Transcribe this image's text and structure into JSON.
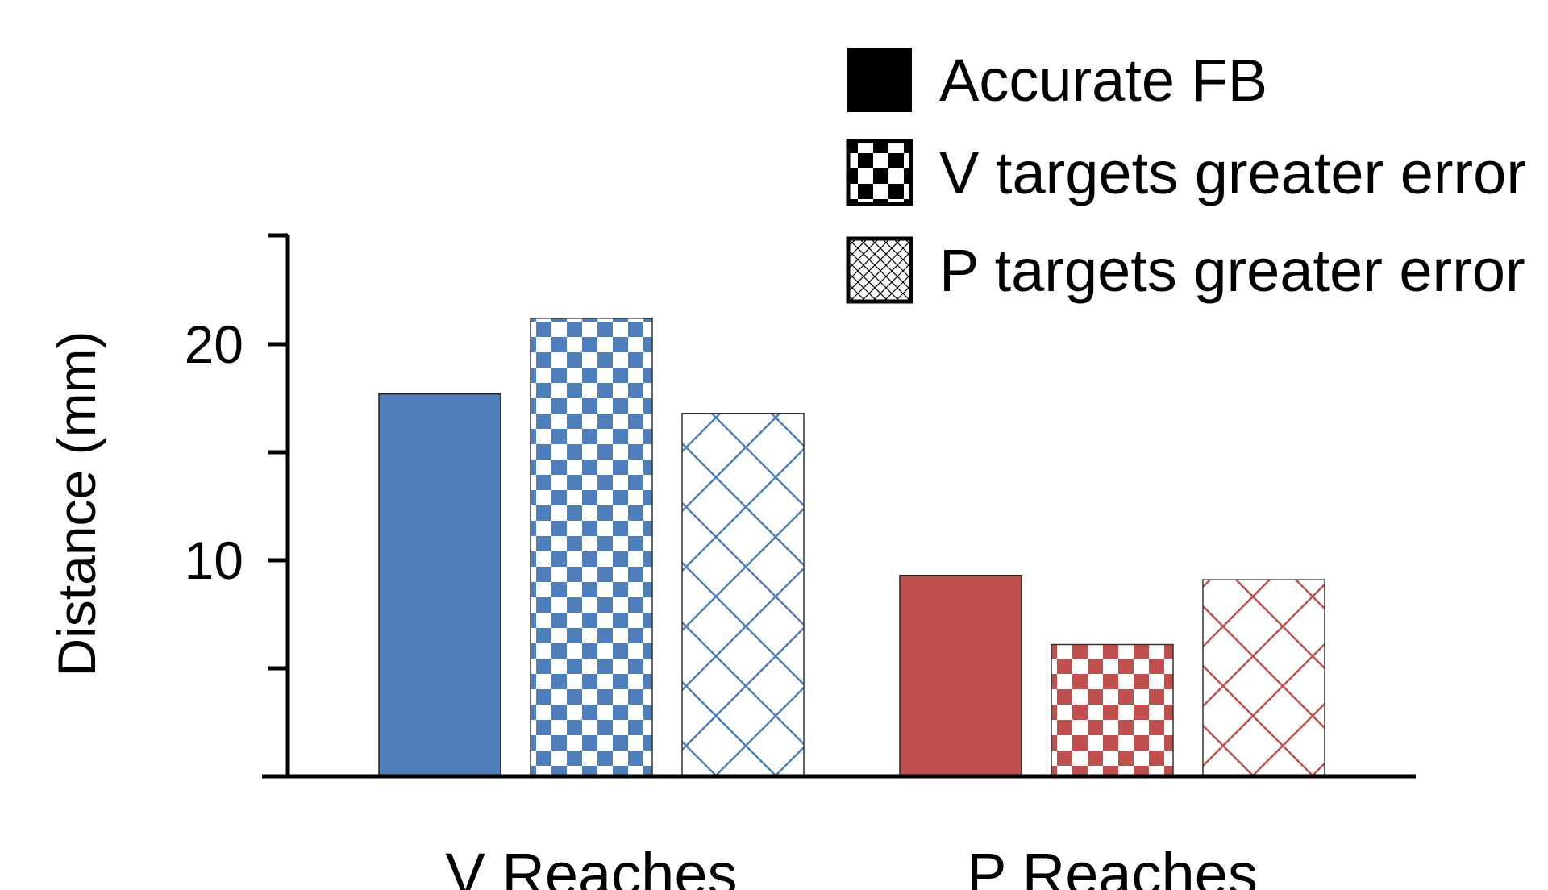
{
  "chart_data": {
    "type": "bar",
    "title": "",
    "xlabel": "",
    "ylabel": "Distance (mm)",
    "ylim": [
      0,
      25
    ],
    "yticks": [
      20,
      10
    ],
    "grid": false,
    "legend_position": "top-right",
    "categories": [
      "V Reaches",
      "P Reaches"
    ],
    "category_colors": [
      "#4e7fba",
      "#c0504d"
    ],
    "series": [
      {
        "name": "Accurate FB",
        "pattern": "solid",
        "values": [
          17.7,
          9.3
        ]
      },
      {
        "name": "V targets greater error",
        "pattern": "checker",
        "values": [
          21.2,
          6.1
        ]
      },
      {
        "name": "P targets greater error",
        "pattern": "crosshatch",
        "values": [
          16.8,
          9.1
        ]
      }
    ]
  }
}
